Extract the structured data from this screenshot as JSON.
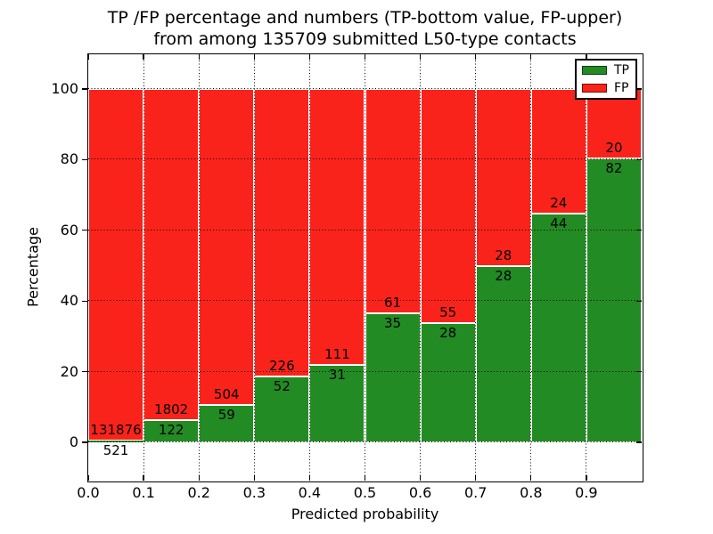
{
  "title": {
    "line1": "TP /FP percentage and numbers (TP-bottom value, FP-upper)",
    "line2": "from among 135709 submitted L50-type contacts"
  },
  "axes": {
    "xlabel": "Predicted probability",
    "ylabel": "Percentage",
    "xtick_labels": [
      "0.0",
      "0.1",
      "0.2",
      "0.3",
      "0.4",
      "0.5",
      "0.6",
      "0.7",
      "0.8",
      "0.9"
    ],
    "ytick_labels": [
      "0",
      "20",
      "40",
      "60",
      "80",
      "100"
    ],
    "ytick_values": [
      0,
      20,
      40,
      60,
      80,
      100
    ]
  },
  "colors": {
    "tp": "#238b23",
    "fp": "#fa231b",
    "grid": "#000000",
    "bar_edge": "#ffffff"
  },
  "legend": {
    "position": "upper right",
    "entries": [
      {
        "label": "TP",
        "color": "#238b23"
      },
      {
        "label": "FP",
        "color": "#fa231b"
      }
    ]
  },
  "chart_data": {
    "type": "bar",
    "stacked": true,
    "normalized": "each 0.1-wide bin scaled to 100%",
    "title": "TP /FP percentage and numbers (TP-bottom value, FP-upper) from among 135709 submitted L50-type contacts",
    "xlabel": "Predicted probability",
    "ylabel": "Percentage",
    "total_contacts": 135709,
    "bin_edges": [
      0.0,
      0.1,
      0.2,
      0.3,
      0.4,
      0.5,
      0.6,
      0.7,
      0.8,
      0.9,
      1.0
    ],
    "categories": [
      "0.0-0.1",
      "0.1-0.2",
      "0.2-0.3",
      "0.3-0.4",
      "0.4-0.5",
      "0.5-0.6",
      "0.6-0.7",
      "0.7-0.8",
      "0.8-0.9",
      "0.9-1.0"
    ],
    "series": [
      {
        "name": "TP",
        "counts": [
          521,
          122,
          59,
          52,
          31,
          35,
          28,
          28,
          44,
          82
        ]
      },
      {
        "name": "FP",
        "counts": [
          131876,
          1802,
          504,
          226,
          111,
          61,
          55,
          28,
          24,
          20
        ]
      }
    ],
    "tp_percent_by_bin": [
      0.39,
      6.34,
      10.48,
      18.71,
      21.83,
      36.46,
      33.73,
      50.0,
      64.71,
      80.39
    ],
    "ylim": [
      -10.8,
      109.8
    ],
    "xlim": [
      0.0,
      1.0
    ],
    "grid": "dotted",
    "legend_position": "upper right"
  }
}
